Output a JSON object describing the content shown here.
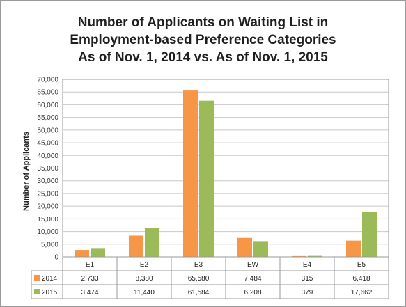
{
  "chart_data": {
    "type": "bar",
    "title_lines": [
      "Number of Applicants on Waiting List in",
      "Employment-based Preference Categories",
      "As of Nov. 1, 2014 vs. As of Nov. 1, 2015"
    ],
    "ylabel": "Number of Applicants",
    "xlabel": "",
    "categories": [
      "E1",
      "E2",
      "E3",
      "EW",
      "E4",
      "E5"
    ],
    "series": [
      {
        "name": "2014",
        "color": "#f79646",
        "values": [
          2733,
          8380,
          65580,
          7484,
          315,
          6418
        ],
        "labels": [
          "2,733",
          "8,380",
          "65,580",
          "7,484",
          "315",
          "6,418"
        ]
      },
      {
        "name": "2015",
        "color": "#9bbb59",
        "values": [
          3474,
          11440,
          61584,
          6208,
          379,
          17662
        ],
        "labels": [
          "3,474",
          "11,440",
          "61,584",
          "6,208",
          "379",
          "17,662"
        ]
      }
    ],
    "ylim": [
      0,
      70000
    ],
    "yticks": [
      0,
      5000,
      10000,
      15000,
      20000,
      25000,
      30000,
      35000,
      40000,
      45000,
      50000,
      55000,
      60000,
      65000,
      70000
    ],
    "ytick_labels": [
      "0",
      "5,000",
      "10,000",
      "15,000",
      "20,000",
      "25,000",
      "30,000",
      "35,000",
      "40,000",
      "45,000",
      "50,000",
      "55,000",
      "60,000",
      "65,000",
      "70,000"
    ],
    "grid": true,
    "legend": "data-table"
  }
}
